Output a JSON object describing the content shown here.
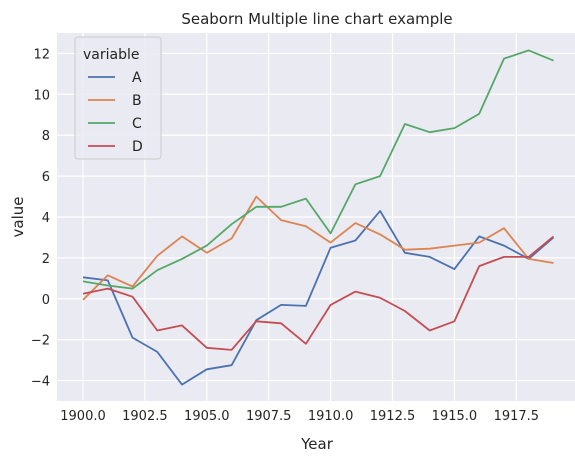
{
  "chart_data": {
    "type": "line",
    "title": "Seaborn Multiple line chart example",
    "xlabel": "Year",
    "ylabel": "value",
    "x": [
      1900,
      1901,
      1902,
      1903,
      1904,
      1905,
      1906,
      1907,
      1908,
      1909,
      1910,
      1911,
      1912,
      1913,
      1914,
      1915,
      1916,
      1917,
      1918,
      1919
    ],
    "xlim": [
      1898.95,
      1919.95
    ],
    "ylim": [
      -5.0,
      13.0
    ],
    "xticks": [
      1900.0,
      1902.5,
      1905.0,
      1907.5,
      1910.0,
      1912.5,
      1915.0,
      1917.5
    ],
    "xtick_labels": [
      "1900.0",
      "1902.5",
      "1905.0",
      "1907.5",
      "1910.0",
      "1912.5",
      "1915.0",
      "1917.5"
    ],
    "yticks": [
      -4,
      -2,
      0,
      2,
      4,
      6,
      8,
      10,
      12
    ],
    "ytick_labels": [
      "−4",
      "−2",
      "0",
      "2",
      "4",
      "6",
      "8",
      "10",
      "12"
    ],
    "grid": true,
    "background": "#eaeaf2",
    "legend": {
      "title": "variable",
      "placement": "top-left"
    },
    "series": [
      {
        "name": "A",
        "color": "#4c72b0",
        "values": [
          1.05,
          0.9,
          -1.9,
          -2.6,
          -4.2,
          -3.45,
          -3.25,
          -1.05,
          -0.3,
          -0.35,
          2.5,
          2.85,
          4.3,
          2.25,
          2.05,
          1.45,
          3.05,
          2.6,
          1.95,
          3.0
        ]
      },
      {
        "name": "B",
        "color": "#dd8452",
        "values": [
          -0.05,
          1.15,
          0.6,
          2.1,
          3.05,
          2.25,
          2.95,
          5.0,
          3.85,
          3.55,
          2.75,
          3.7,
          3.15,
          2.4,
          2.45,
          2.6,
          2.75,
          3.45,
          1.95,
          1.75
        ]
      },
      {
        "name": "C",
        "color": "#55a868",
        "values": [
          0.85,
          0.65,
          0.5,
          1.4,
          1.95,
          2.6,
          3.65,
          4.5,
          4.5,
          4.9,
          3.2,
          5.6,
          6.0,
          8.55,
          8.15,
          8.35,
          9.05,
          11.75,
          12.15,
          11.65
        ]
      },
      {
        "name": "D",
        "color": "#c44e52",
        "values": [
          0.25,
          0.5,
          0.1,
          -1.55,
          -1.3,
          -2.4,
          -2.5,
          -1.1,
          -1.2,
          -2.2,
          -0.3,
          0.35,
          0.05,
          -0.6,
          -1.55,
          -1.1,
          1.6,
          2.05,
          2.05,
          3.05
        ]
      }
    ]
  }
}
